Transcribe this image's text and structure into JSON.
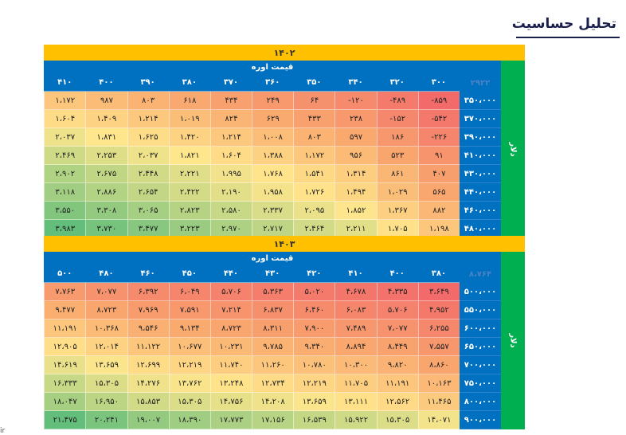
{
  "title": "تحلیل حساسیت",
  "footer_text": "ir",
  "colors": {
    "year_bar": "#ffc000",
    "header": "#0070c0",
    "side": "#00b050",
    "title": "#1a1f4b"
  },
  "tables": [
    {
      "year": "۱۴۰۲",
      "price_header": "قیمت اوره",
      "side_label": "دلار",
      "corner": "۲۹۲۲",
      "columns": [
        "۳۰۰",
        "۳۲۰",
        "۳۴۰",
        "۳۵۰",
        "۳۶۰",
        "۳۷۰",
        "۳۸۰",
        "۳۹۰",
        "۴۰۰",
        "۴۱۰"
      ],
      "rows": [
        {
          "label": "۳۵۰،۰۰۰",
          "values": [
            "-۸۵۹",
            "-۴۸۹",
            "-۱۲۰",
            "۶۴",
            "۲۴۹",
            "۴۳۴",
            "۶۱۸",
            "۸۰۳",
            "۹۸۷",
            "۱،۱۷۲"
          ]
        },
        {
          "label": "۳۷۰،۰۰۰",
          "values": [
            "-۵۴۲",
            "-۱۵۲",
            "۲۳۸",
            "۴۳۳",
            "۶۲۹",
            "۸۲۴",
            "۱،۰۱۹",
            "۱،۲۱۴",
            "۱،۴۰۹",
            "۱،۶۰۴"
          ]
        },
        {
          "label": "۳۹۰،۰۰۰",
          "values": [
            "-۲۲۶",
            "۱۸۶",
            "۵۹۷",
            "۸۰۳",
            "۱،۰۰۸",
            "۱،۲۱۴",
            "۱،۴۲۰",
            "۱،۶۲۵",
            "۱،۸۳۱",
            "۲،۰۳۷"
          ]
        },
        {
          "label": "۴۱۰،۰۰۰",
          "values": [
            "۹۱",
            "۵۲۳",
            "۹۵۶",
            "۱،۱۷۲",
            "۱،۳۸۸",
            "۱،۶۰۴",
            "۱،۸۲۱",
            "۲،۰۳۷",
            "۲،۲۵۳",
            "۲،۴۶۹"
          ]
        },
        {
          "label": "۴۳۰،۰۰۰",
          "values": [
            "۴۰۷",
            "۸۶۱",
            "۱،۳۱۴",
            "۱،۵۴۱",
            "۱،۷۶۸",
            "۱،۹۹۵",
            "۲،۲۲۱",
            "۲،۴۴۸",
            "۲،۶۷۵",
            "۲،۹۰۲"
          ]
        },
        {
          "label": "۴۴۰،۰۰۰",
          "values": [
            "۵۶۵",
            "۱،۰۲۹",
            "۱،۴۹۴",
            "۱،۷۲۶",
            "۱،۹۵۸",
            "۲،۱۹۰",
            "۲،۴۲۲",
            "۲،۶۵۴",
            "۲،۸۸۶",
            "۳،۱۱۸"
          ]
        },
        {
          "label": "۴۶۰،۰۰۰",
          "values": [
            "۸۸۲",
            "۱،۳۶۷",
            "۱،۸۵۲",
            "۲،۰۹۵",
            "۲،۳۳۷",
            "۲،۵۸۰",
            "۲،۸۲۳",
            "۳،۰۶۵",
            "۳،۳۰۸",
            "۳،۵۵۰"
          ]
        },
        {
          "label": "۴۸۰،۰۰۰",
          "values": [
            "۱،۱۹۸",
            "۱،۷۰۵",
            "۲،۲۱۱",
            "۲،۴۶۴",
            "۲،۷۱۷",
            "۲،۹۷۰",
            "۳،۲۲۳",
            "۳،۴۷۷",
            "۳،۷۳۰",
            "۳،۹۸۳"
          ]
        }
      ]
    },
    {
      "year": "۱۴۰۳",
      "price_header": "قیمت اوره",
      "side_label": "دلار",
      "corner": "۸،۷۶۴",
      "columns": [
        "۳۸۰",
        "۴۰۰",
        "۴۱۰",
        "۴۲۰",
        "۴۳۰",
        "۴۴۰",
        "۴۵۰",
        "۴۶۰",
        "۴۸۰",
        "۵۰۰"
      ],
      "rows": [
        {
          "label": "۵۰۰،۰۰۰",
          "values": [
            "۳،۶۴۹",
            "۴،۳۳۵",
            "۴،۶۷۸",
            "۵،۰۲۰",
            "۵،۳۶۳",
            "۵،۷۰۶",
            "۶،۰۴۹",
            "۶،۳۹۲",
            "۷،۰۷۷",
            "۷،۷۶۳"
          ]
        },
        {
          "label": "۵۵۰،۰۰۰",
          "values": [
            "۴،۹۵۲",
            "۵،۷۰۶",
            "۶،۰۸۳",
            "۶،۴۶۰",
            "۶،۸۳۷",
            "۷،۲۱۴",
            "۷،۵۹۱",
            "۷،۹۶۹",
            "۸،۷۲۳",
            "۹،۴۷۷"
          ]
        },
        {
          "label": "۶۰۰،۰۰۰",
          "values": [
            "۶،۲۵۵",
            "۷،۰۷۷",
            "۷،۴۸۹",
            "۷،۹۰۰",
            "۸،۳۱۱",
            "۸،۷۲۳",
            "۹،۱۳۴",
            "۹،۵۴۶",
            "۱۰،۳۶۸",
            "۱۱،۱۹۱"
          ]
        },
        {
          "label": "۶۵۰،۰۰۰",
          "values": [
            "۷،۵۵۷",
            "۸،۴۴۹",
            "۸،۸۹۴",
            "۹،۳۴۰",
            "۹،۷۸۵",
            "۱۰،۲۳۱",
            "۱۰،۶۷۷",
            "۱۱،۱۲۲",
            "۱۲،۰۱۴",
            "۱۲،۹۰۵"
          ]
        },
        {
          "label": "۷۰۰،۰۰۰",
          "values": [
            "۸،۸۶۰",
            "۹،۸۲۰",
            "۱۰،۳۰۰",
            "۱۰،۷۸۰",
            "۱۱،۲۶۰",
            "۱۱،۷۴۰",
            "۱۲،۲۱۹",
            "۱۲،۶۹۹",
            "۱۳،۶۵۹",
            "۱۴،۶۱۹"
          ]
        },
        {
          "label": "۷۵۰،۰۰۰",
          "values": [
            "۱۰،۱۶۳",
            "۱۱،۱۹۱",
            "۱۱،۷۰۵",
            "۱۲،۲۱۹",
            "۱۲،۷۳۴",
            "۱۳،۲۴۸",
            "۱۳،۷۶۲",
            "۱۴،۲۷۶",
            "۱۵،۳۰۵",
            "۱۶،۳۳۳"
          ]
        },
        {
          "label": "۸۰۰،۰۰۰",
          "values": [
            "۱۱،۴۶۵",
            "۱۲،۵۶۲",
            "۱۳،۱۱۱",
            "۱۳،۶۵۹",
            "۱۴،۲۰۸",
            "۱۴،۷۵۶",
            "۱۵،۳۰۵",
            "۱۵،۸۵۳",
            "۱۶،۹۵۰",
            "۱۸،۰۴۷"
          ]
        },
        {
          "label": "۹۰۰،۰۰۰",
          "values": [
            "۱۴،۰۷۱",
            "۱۵،۳۰۵",
            "۱۵،۹۲۲",
            "۱۶،۵۳۹",
            "۱۷،۱۵۶",
            "۱۷،۷۷۳",
            "۱۸،۳۹۰",
            "۱۹،۰۰۷",
            "۲۰،۲۴۱",
            "۲۱،۴۷۵"
          ]
        }
      ]
    }
  ]
}
